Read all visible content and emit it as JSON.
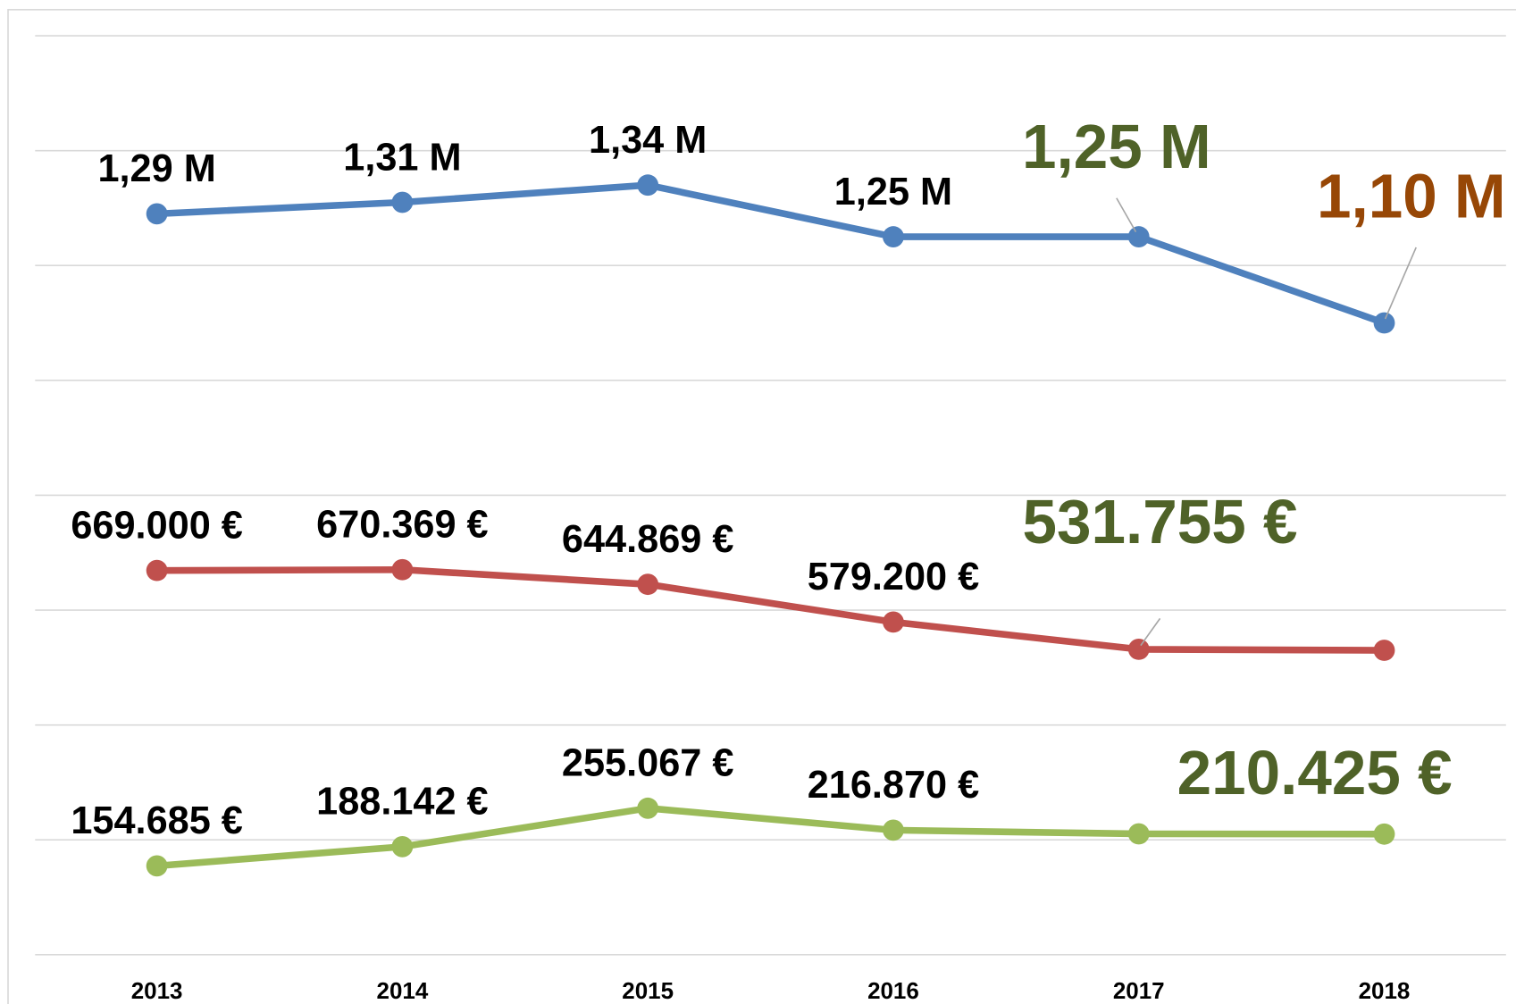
{
  "chart_data": {
    "type": "line",
    "categories": [
      "2013",
      "2014",
      "2015",
      "2016",
      "2017",
      "2018"
    ],
    "ylim": [
      0,
      1600000
    ],
    "yticks": [
      0,
      200000,
      400000,
      600000,
      800000,
      1000000,
      1200000,
      1400000,
      1600000
    ],
    "grid": true,
    "series": [
      {
        "color": "#4f81bd",
        "values": [
          1290000,
          1310000,
          1340000,
          1250000,
          1250000,
          1100000
        ],
        "value_labels": [
          "1,29 M",
          "1,31 M",
          "1,34 M",
          "1,25 M",
          "1,25 M",
          "1,10 M"
        ],
        "value_label_colors": [
          null,
          null,
          null,
          null,
          "#4f6228",
          "#974706"
        ]
      },
      {
        "color": "#c0504d",
        "values": [
          669000,
          670369,
          644869,
          579200,
          531755,
          530000
        ],
        "value_labels": [
          "669.000 €",
          "670.369 €",
          "644.869 €",
          "579.200 €",
          "531.755 €",
          null
        ],
        "value_label_colors": [
          null,
          null,
          null,
          null,
          "#4f6228",
          null
        ]
      },
      {
        "color": "#9bbb59",
        "values": [
          154685,
          188142,
          255067,
          216870,
          210425,
          210000
        ],
        "value_labels": [
          "154.685 €",
          "188.142 €",
          "255.067 €",
          "216.870 €",
          "210.425 €",
          null
        ],
        "value_label_colors": [
          null,
          null,
          null,
          null,
          "#4f6228",
          null
        ]
      }
    ]
  }
}
